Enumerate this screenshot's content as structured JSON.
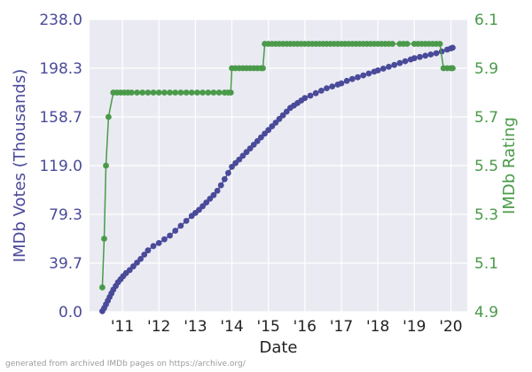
{
  "chart_data": {
    "type": "line",
    "title": "",
    "xlabel": "Date",
    "ylabel_left": "IMDb Votes (Thousands)",
    "ylabel_right": "IMDb Rating",
    "x_ticks": [
      "'11",
      "'12",
      "'13",
      "'14",
      "'15",
      "'16",
      "'17",
      "'18",
      "'19",
      "'20"
    ],
    "xlim": [
      2010.1,
      2020.45
    ],
    "y_left": {
      "lim": [
        0,
        238
      ],
      "ticks": [
        "0.0",
        "39.7",
        "79.3",
        "119.0",
        "158.7",
        "198.3",
        "238.0"
      ],
      "color": "#4a4a9a"
    },
    "y_right": {
      "lim": [
        4.9,
        6.1
      ],
      "ticks": [
        "4.9",
        "5.1",
        "5.3",
        "5.5",
        "5.7",
        "5.9",
        "6.1"
      ],
      "color": "#4a9a4a"
    },
    "grid": true,
    "background": "#eaeaf2",
    "series": [
      {
        "axis": "left",
        "color": "#4a4a9a",
        "points": [
          [
            2010.45,
            0.5
          ],
          [
            2010.5,
            3
          ],
          [
            2010.55,
            6
          ],
          [
            2010.6,
            9
          ],
          [
            2010.65,
            12
          ],
          [
            2010.7,
            15
          ],
          [
            2010.75,
            18
          ],
          [
            2010.82,
            21
          ],
          [
            2010.88,
            24
          ],
          [
            2010.95,
            26.5
          ],
          [
            2011.02,
            29
          ],
          [
            2011.1,
            31.5
          ],
          [
            2011.2,
            34
          ],
          [
            2011.3,
            37
          ],
          [
            2011.4,
            40
          ],
          [
            2011.5,
            43
          ],
          [
            2011.6,
            46.5
          ],
          [
            2011.7,
            50
          ],
          [
            2011.85,
            53.5
          ],
          [
            2012.0,
            56
          ],
          [
            2012.15,
            59
          ],
          [
            2012.3,
            62
          ],
          [
            2012.45,
            66
          ],
          [
            2012.6,
            70
          ],
          [
            2012.75,
            74
          ],
          [
            2012.9,
            78
          ],
          [
            2013.0,
            80.5
          ],
          [
            2013.1,
            83
          ],
          [
            2013.2,
            86
          ],
          [
            2013.3,
            89
          ],
          [
            2013.4,
            92
          ],
          [
            2013.5,
            95
          ],
          [
            2013.6,
            98.5
          ],
          [
            2013.7,
            103
          ],
          [
            2013.8,
            108
          ],
          [
            2013.9,
            113
          ],
          [
            2014.0,
            118
          ],
          [
            2014.1,
            121
          ],
          [
            2014.2,
            124
          ],
          [
            2014.3,
            127
          ],
          [
            2014.4,
            130
          ],
          [
            2014.5,
            133
          ],
          [
            2014.6,
            136
          ],
          [
            2014.7,
            139
          ],
          [
            2014.8,
            142
          ],
          [
            2014.9,
            145
          ],
          [
            2015.0,
            148
          ],
          [
            2015.1,
            151
          ],
          [
            2015.2,
            154
          ],
          [
            2015.3,
            157
          ],
          [
            2015.4,
            160
          ],
          [
            2015.5,
            163
          ],
          [
            2015.6,
            166
          ],
          [
            2015.7,
            168
          ],
          [
            2015.8,
            170
          ],
          [
            2015.9,
            172
          ],
          [
            2016.0,
            174
          ],
          [
            2016.15,
            176
          ],
          [
            2016.3,
            178
          ],
          [
            2016.45,
            180
          ],
          [
            2016.6,
            182
          ],
          [
            2016.75,
            183.5
          ],
          [
            2016.9,
            185
          ],
          [
            2017.0,
            186
          ],
          [
            2017.15,
            188
          ],
          [
            2017.3,
            189.5
          ],
          [
            2017.45,
            191
          ],
          [
            2017.6,
            192.5
          ],
          [
            2017.75,
            194
          ],
          [
            2017.9,
            195.5
          ],
          [
            2018.0,
            196.5
          ],
          [
            2018.15,
            198
          ],
          [
            2018.3,
            199.5
          ],
          [
            2018.45,
            201
          ],
          [
            2018.6,
            202.5
          ],
          [
            2018.75,
            204
          ],
          [
            2018.9,
            205.5
          ],
          [
            2019.0,
            206.5
          ],
          [
            2019.15,
            207.5
          ],
          [
            2019.3,
            208.5
          ],
          [
            2019.45,
            209.5
          ],
          [
            2019.6,
            210.5
          ],
          [
            2019.75,
            212
          ],
          [
            2019.9,
            213.5
          ],
          [
            2020.0,
            214.5
          ],
          [
            2020.05,
            215
          ]
        ]
      },
      {
        "axis": "right",
        "color": "#4a9a4a",
        "points": [
          [
            2010.45,
            5.0
          ],
          [
            2010.5,
            5.2
          ],
          [
            2010.55,
            5.5
          ],
          [
            2010.62,
            5.7
          ],
          [
            2010.75,
            5.8
          ],
          [
            2010.85,
            5.8
          ],
          [
            2010.95,
            5.8
          ],
          [
            2011.05,
            5.8
          ],
          [
            2011.15,
            5.8
          ],
          [
            2011.25,
            5.8
          ],
          [
            2011.4,
            5.8
          ],
          [
            2011.55,
            5.8
          ],
          [
            2011.7,
            5.8
          ],
          [
            2011.85,
            5.8
          ],
          [
            2012.0,
            5.8
          ],
          [
            2012.15,
            5.8
          ],
          [
            2012.3,
            5.8
          ],
          [
            2012.45,
            5.8
          ],
          [
            2012.6,
            5.8
          ],
          [
            2012.75,
            5.8
          ],
          [
            2012.9,
            5.8
          ],
          [
            2013.05,
            5.8
          ],
          [
            2013.2,
            5.8
          ],
          [
            2013.35,
            5.8
          ],
          [
            2013.5,
            5.8
          ],
          [
            2013.65,
            5.8
          ],
          [
            2013.8,
            5.8
          ],
          [
            2013.9,
            5.8
          ],
          [
            2013.97,
            5.8
          ],
          [
            2014.0,
            5.9
          ],
          [
            2014.1,
            5.9
          ],
          [
            2014.2,
            5.9
          ],
          [
            2014.3,
            5.9
          ],
          [
            2014.4,
            5.9
          ],
          [
            2014.5,
            5.9
          ],
          [
            2014.6,
            5.9
          ],
          [
            2014.7,
            5.9
          ],
          [
            2014.8,
            5.9
          ],
          [
            2014.85,
            5.9
          ],
          [
            2014.9,
            6.0
          ],
          [
            2015.0,
            6.0
          ],
          [
            2015.1,
            6.0
          ],
          [
            2015.2,
            6.0
          ],
          [
            2015.3,
            6.0
          ],
          [
            2015.4,
            6.0
          ],
          [
            2015.5,
            6.0
          ],
          [
            2015.6,
            6.0
          ],
          [
            2015.7,
            6.0
          ],
          [
            2015.8,
            6.0
          ],
          [
            2015.9,
            6.0
          ],
          [
            2016.0,
            6.0
          ],
          [
            2016.1,
            6.0
          ],
          [
            2016.2,
            6.0
          ],
          [
            2016.3,
            6.0
          ],
          [
            2016.4,
            6.0
          ],
          [
            2016.5,
            6.0
          ],
          [
            2016.6,
            6.0
          ],
          [
            2016.7,
            6.0
          ],
          [
            2016.8,
            6.0
          ],
          [
            2016.9,
            6.0
          ],
          [
            2017.0,
            6.0
          ],
          [
            2017.1,
            6.0
          ],
          [
            2017.2,
            6.0
          ],
          [
            2017.3,
            6.0
          ],
          [
            2017.4,
            6.0
          ],
          [
            2017.5,
            6.0
          ],
          [
            2017.6,
            6.0
          ],
          [
            2017.7,
            6.0
          ],
          [
            2017.8,
            6.0
          ],
          [
            2017.9,
            6.0
          ],
          [
            2018.0,
            6.0
          ],
          [
            2018.1,
            6.0
          ],
          [
            2018.2,
            6.0
          ],
          [
            2018.3,
            6.0
          ],
          [
            2018.4,
            6.0
          ],
          [
            2018.6,
            6.0
          ],
          [
            2018.7,
            6.0
          ],
          [
            2018.8,
            6.0
          ],
          [
            2019.0,
            6.0
          ],
          [
            2019.1,
            6.0
          ],
          [
            2019.2,
            6.0
          ],
          [
            2019.3,
            6.0
          ],
          [
            2019.4,
            6.0
          ],
          [
            2019.5,
            6.0
          ],
          [
            2019.6,
            6.0
          ],
          [
            2019.7,
            6.0
          ],
          [
            2019.8,
            5.9
          ],
          [
            2019.9,
            5.9
          ],
          [
            2020.0,
            5.9
          ],
          [
            2020.05,
            5.9
          ]
        ]
      }
    ]
  },
  "footer": {
    "credit": "generated from archived IMDb pages on https://archive.org/"
  }
}
